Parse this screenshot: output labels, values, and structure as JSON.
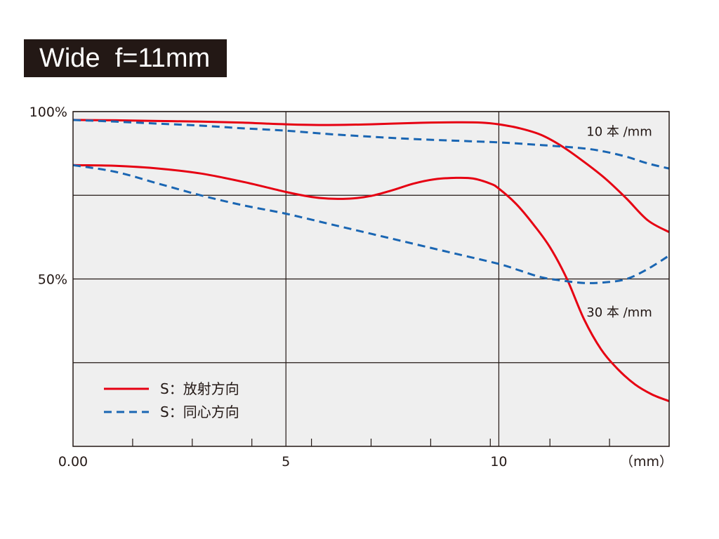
{
  "chart_data": {
    "type": "line",
    "title": "Wide  f=11mm",
    "xlim": [
      0,
      14
    ],
    "ylim": [
      0,
      100
    ],
    "xticks": [
      {
        "value": 0,
        "label": "0.00"
      },
      {
        "value": 5,
        "label": "5"
      },
      {
        "value": 10,
        "label": "10"
      }
    ],
    "yticks": [
      {
        "value": 100,
        "label": "100%"
      },
      {
        "value": 50,
        "label": "50%"
      }
    ],
    "x_unit_label": "（mm）",
    "grid_x": [
      5,
      10
    ],
    "grid_y": [
      25,
      50,
      75,
      100
    ],
    "minor_ticks_x": [
      1.4,
      2.8,
      4.2,
      5.6,
      7.0,
      8.4,
      9.8,
      11.2,
      12.6
    ],
    "annotations": [
      {
        "text": "10 本 /mm",
        "x": 13.6,
        "y": 94
      },
      {
        "text": "30 本 /mm",
        "x": 13.6,
        "y": 40
      }
    ],
    "legend": {
      "position": "bottom-left",
      "entries": [
        {
          "label": "S：放射方向",
          "color": "#e60012",
          "dash": "solid"
        },
        {
          "label": "S：同心方向",
          "color": "#1a66b3",
          "dash": "dashed"
        }
      ]
    },
    "series": [
      {
        "line_style": "solid",
        "color": "#e60012",
        "x": [
          0,
          1,
          2,
          3,
          4,
          5,
          6,
          7,
          8,
          9,
          9.6,
          10,
          10.5,
          11,
          11.5,
          12,
          12.5,
          13,
          13.5,
          14
        ],
        "y": [
          97.5,
          97.4,
          97.2,
          97.0,
          96.7,
          96.2,
          96.0,
          96.2,
          96.6,
          96.8,
          96.7,
          96.2,
          95.0,
          93.0,
          89.5,
          85.0,
          80.0,
          74.0,
          67.5,
          64.0
        ]
      },
      {
        "line_style": "dashed",
        "color": "#1a66b3",
        "x": [
          0,
          1,
          2,
          3,
          4,
          5,
          6,
          7,
          8,
          9,
          10,
          11,
          12,
          12.5,
          13,
          13.5,
          14
        ],
        "y": [
          97.5,
          97.0,
          96.4,
          95.8,
          95.0,
          94.3,
          93.3,
          92.5,
          91.8,
          91.3,
          90.8,
          90.0,
          89.0,
          88.0,
          86.5,
          84.5,
          83.0
        ]
      },
      {
        "line_style": "solid",
        "color": "#e60012",
        "x": [
          0,
          1,
          2,
          3,
          4,
          5,
          5.6,
          6,
          6.5,
          7,
          7.5,
          8,
          8.5,
          9,
          9.4,
          9.8,
          10,
          10.4,
          10.8,
          11.2,
          11.6,
          12,
          12.4,
          12.8,
          13.2,
          13.6,
          14
        ],
        "y": [
          84,
          83.8,
          83.0,
          81.5,
          79.0,
          76.0,
          74.5,
          74.0,
          74.0,
          74.8,
          76.5,
          78.5,
          79.8,
          80.2,
          80.0,
          78.5,
          77.0,
          72.5,
          66.5,
          59.5,
          50.0,
          38.0,
          29.0,
          23.0,
          18.5,
          15.5,
          13.5
        ]
      },
      {
        "line_style": "dashed",
        "color": "#1a66b3",
        "x": [
          0,
          1,
          2,
          3,
          4,
          5,
          6,
          7,
          8,
          9,
          10,
          10.5,
          11,
          11.5,
          12,
          12.5,
          13,
          13.5,
          14
        ],
        "y": [
          84,
          82.0,
          78.5,
          75.0,
          72.0,
          69.5,
          66.5,
          63.5,
          60.5,
          57.5,
          54.5,
          52.5,
          50.5,
          49.5,
          48.8,
          49.0,
          50.0,
          53.0,
          57.0
        ]
      }
    ]
  }
}
